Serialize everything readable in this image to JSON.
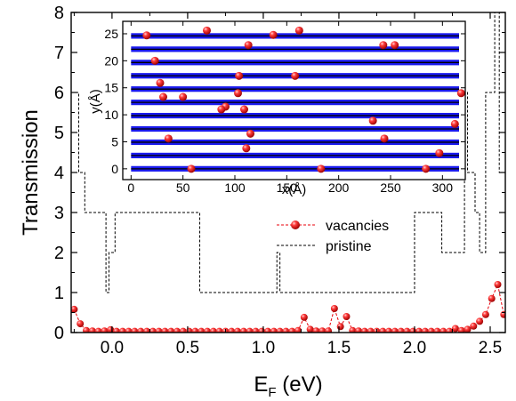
{
  "chart_data": [
    {
      "id": "main",
      "type": "line",
      "xlabel_main": "E",
      "xlabel_sub": "F",
      "xlabel_unit": " (eV)",
      "ylabel": "Transmission",
      "xlim": [
        -0.27,
        2.6
      ],
      "ylim": [
        0,
        8
      ],
      "x_ticks": [
        0.0,
        0.5,
        1.0,
        1.5,
        2.0,
        2.5
      ],
      "x_tick_labels": [
        "0.0",
        "0.5",
        "1.0",
        "1.5",
        "2.0",
        "2.5"
      ],
      "y_ticks": [
        0,
        1,
        2,
        3,
        4,
        5,
        6,
        7,
        8
      ],
      "y_tick_labels": [
        "0",
        "1",
        "2",
        "3",
        "4",
        "5",
        "6",
        "7",
        "8"
      ],
      "legend_position": "center-right",
      "series": [
        {
          "name": "vacancies",
          "style": "dashed-markers",
          "color": "#e8000b",
          "x": [
            -0.25,
            -0.21,
            -0.17,
            -0.13,
            -0.09,
            -0.05,
            -0.01,
            0.03,
            0.07,
            0.11,
            0.15,
            0.19,
            0.23,
            0.27,
            0.31,
            0.35,
            0.39,
            0.43,
            0.47,
            0.51,
            0.55,
            0.59,
            0.63,
            0.67,
            0.71,
            0.75,
            0.79,
            0.83,
            0.87,
            0.91,
            0.95,
            0.99,
            1.03,
            1.07,
            1.11,
            1.15,
            1.19,
            1.23,
            1.27,
            1.31,
            1.35,
            1.39,
            1.43,
            1.47,
            1.51,
            1.55,
            1.59,
            1.63,
            1.67,
            1.71,
            1.75,
            1.79,
            1.83,
            1.87,
            1.91,
            1.95,
            1.99,
            2.03,
            2.07,
            2.11,
            2.15,
            2.19,
            2.23,
            2.27,
            2.31,
            2.35,
            2.39,
            2.43,
            2.47,
            2.51,
            2.55,
            2.59
          ],
          "y": [
            0.58,
            0.22,
            0.05,
            0.04,
            0.03,
            0.04,
            0.07,
            0.03,
            0.03,
            0.03,
            0.03,
            0.03,
            0.03,
            0.03,
            0.03,
            0.03,
            0.03,
            0.03,
            0.03,
            0.03,
            0.03,
            0.03,
            0.03,
            0.03,
            0.03,
            0.03,
            0.03,
            0.03,
            0.03,
            0.03,
            0.03,
            0.03,
            0.03,
            0.03,
            0.03,
            0.03,
            0.03,
            0.05,
            0.38,
            0.08,
            0.04,
            0.04,
            0.04,
            0.6,
            0.15,
            0.4,
            0.05,
            0.04,
            0.03,
            0.03,
            0.03,
            0.03,
            0.03,
            0.03,
            0.03,
            0.03,
            0.03,
            0.03,
            0.03,
            0.03,
            0.03,
            0.03,
            0.03,
            0.1,
            0.05,
            0.08,
            0.16,
            0.28,
            0.45,
            0.85,
            1.2,
            0.45
          ]
        },
        {
          "name": "pristine",
          "style": "dashed",
          "color": "#000000",
          "x": [
            -0.27,
            -0.22,
            -0.22,
            -0.18,
            -0.18,
            -0.04,
            -0.04,
            -0.02,
            -0.02,
            0.0,
            0.0,
            0.02,
            0.02,
            0.58,
            0.58,
            1.09,
            1.09,
            1.11,
            1.11,
            2.0,
            2.0,
            2.18,
            2.18,
            2.33,
            2.33,
            2.35,
            2.35,
            2.4,
            2.4,
            2.43,
            2.43,
            2.47,
            2.47,
            2.53,
            2.53,
            2.56,
            2.56,
            2.6
          ],
          "y": [
            6,
            6,
            4,
            4,
            3,
            3,
            1,
            1,
            2,
            2,
            2,
            2,
            3,
            3,
            1,
            1,
            2,
            2,
            1,
            1,
            3,
            3,
            2,
            2,
            6,
            6,
            4,
            4,
            3,
            3,
            2,
            2,
            6,
            6,
            8,
            8,
            4,
            4
          ]
        }
      ]
    },
    {
      "id": "inset",
      "type": "scatter",
      "xlabel": "x(Å)",
      "ylabel": "y(Å)",
      "xlim": [
        -8,
        322
      ],
      "ylim": [
        -2,
        27.3
      ],
      "x_ticks": [
        0,
        50,
        100,
        150,
        200,
        250,
        300
      ],
      "x_tick_labels": [
        "0",
        "50",
        "100",
        "150",
        "200",
        "250",
        "300"
      ],
      "y_ticks": [
        0,
        5,
        10,
        15,
        20,
        25
      ],
      "y_tick_labels": [
        "0",
        "5",
        "10",
        "15",
        "20",
        "25"
      ],
      "lattice_rows": [
        0.0,
        2.46,
        4.92,
        7.38,
        9.84,
        12.3,
        14.76,
        17.22,
        19.68,
        22.14,
        24.6
      ],
      "lattice_color": "#1a1aee",
      "vacancy_color": "#e8000b",
      "vacancies": {
        "x": [
          15,
          73,
          113,
          137,
          162,
          243,
          254,
          23,
          28,
          104,
          158,
          31,
          50,
          103,
          318,
          91,
          87,
          109,
          233,
          312,
          115,
          36,
          244,
          111,
          297,
          58,
          183,
          284
        ],
        "y": [
          24.7,
          25.6,
          22.9,
          24.8,
          25.6,
          22.9,
          22.9,
          20.0,
          15.9,
          17.2,
          17.2,
          13.3,
          13.3,
          14.0,
          14.0,
          11.5,
          11.0,
          11.0,
          8.9,
          8.3,
          6.5,
          5.6,
          5.6,
          3.8,
          2.9,
          0.0,
          0.0,
          0.0
        ]
      }
    }
  ]
}
